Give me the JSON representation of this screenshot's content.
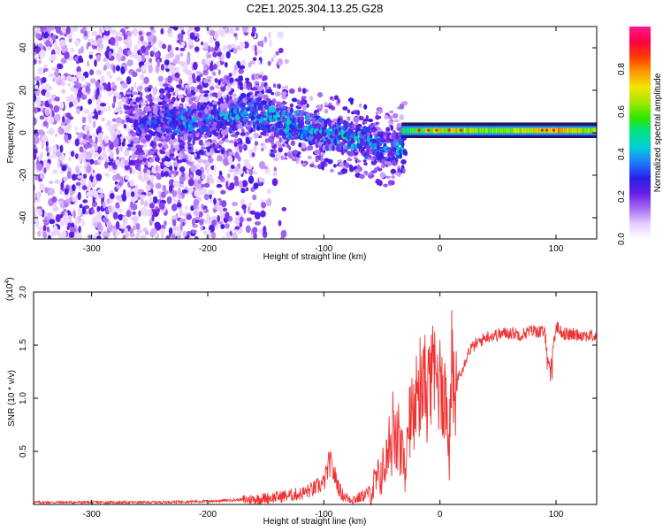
{
  "figure_title": "C2E1.2025.304.13.25.G28",
  "chart_data": [
    {
      "type": "heatmap",
      "title": "C2E1.2025.304.13.25.G28",
      "xlabel": "Height of straight line (km)",
      "ylabel": "Frequency (Hz)",
      "xlim": [
        -350,
        135
      ],
      "ylim": [
        -50,
        50
      ],
      "x_ticks": [
        -300,
        -200,
        -100,
        0,
        100
      ],
      "x_tick_labels": [
        "-300",
        "-200",
        "-100",
        "0",
        "100"
      ],
      "y_ticks": [
        -40,
        -20,
        0,
        20,
        40
      ],
      "y_tick_labels": [
        "-40",
        "-20",
        "0",
        "20",
        "40"
      ],
      "colorbar": {
        "label": "Normalized spectral amplitude",
        "range": [
          0.0,
          1.0
        ],
        "ticks": [
          0.0,
          0.2,
          0.4,
          0.6,
          0.8
        ],
        "tick_labels": [
          "0.0",
          "0.2",
          "0.4",
          "0.6",
          "0.8"
        ],
        "colors": [
          "#ffffff",
          "#e6ccff",
          "#a86cf2",
          "#6a1ee6",
          "#2a1ee6",
          "#1e78ff",
          "#00ccdd",
          "#00e08a",
          "#2ee600",
          "#a8e600",
          "#f2e600",
          "#ff9a00",
          "#ff3a00",
          "#ff0044",
          "#ff1a8c"
        ]
      },
      "ridge": {
        "description_points_x": [
          -260,
          -240,
          -220,
          -200,
          -180,
          -160,
          -140,
          -120,
          -100,
          -80,
          -60,
          -40,
          -30,
          -20,
          0,
          20,
          40,
          60,
          80,
          100,
          135
        ],
        "frequency_hz": [
          3,
          5,
          4,
          6,
          8,
          10,
          6,
          3,
          0,
          -2,
          -5,
          -8,
          -3,
          1,
          2,
          2,
          1,
          1,
          2,
          1,
          1
        ],
        "amplitude": [
          0.3,
          0.35,
          0.4,
          0.35,
          0.4,
          0.4,
          0.45,
          0.45,
          0.4,
          0.45,
          0.4,
          0.35,
          0.5,
          0.6,
          0.65,
          0.65,
          0.6,
          0.6,
          0.7,
          0.75,
          0.6
        ]
      },
      "noise_region_x": [
        -350,
        -160
      ]
    },
    {
      "type": "line",
      "title": "",
      "xlabel": "Height of straight line (km)",
      "ylabel": "SNR (10 * v/v)",
      "y_scale_label": "(x10",
      "y_scale_exponent": "4",
      "y_scale_suffix": ")",
      "xlim": [
        -350,
        135
      ],
      "ylim": [
        0,
        2.0
      ],
      "x_ticks": [
        -300,
        -200,
        -100,
        0,
        100
      ],
      "x_tick_labels": [
        "-300",
        "-200",
        "-100",
        "0",
        "100"
      ],
      "y_ticks": [
        0.5,
        1.0,
        1.5,
        2.0
      ],
      "y_tick_labels": [
        "0.5",
        "1.0",
        "1.5",
        "2.0"
      ],
      "series": [
        {
          "name": "SNR",
          "color": "#ee3333",
          "x": [
            -350,
            -300,
            -250,
            -200,
            -160,
            -140,
            -120,
            -110,
            -100,
            -95,
            -90,
            -85,
            -80,
            -75,
            -70,
            -60,
            -50,
            -45,
            -40,
            -35,
            -30,
            -25,
            -20,
            -15,
            -10,
            -5,
            0,
            5,
            8,
            10,
            12,
            15,
            20,
            25,
            30,
            40,
            50,
            60,
            70,
            80,
            90,
            95,
            98,
            100,
            105,
            110,
            120,
            135
          ],
          "y": [
            0.02,
            0.02,
            0.02,
            0.03,
            0.05,
            0.07,
            0.1,
            0.14,
            0.2,
            0.4,
            0.25,
            0.1,
            0.06,
            0.05,
            0.06,
            0.12,
            0.3,
            0.45,
            0.6,
            0.55,
            0.3,
            0.7,
            1.0,
            1.1,
            1.05,
            1.2,
            1.15,
            1.0,
            0.5,
            1.3,
            1.0,
            1.2,
            1.3,
            1.45,
            1.5,
            1.58,
            1.6,
            1.62,
            1.6,
            1.64,
            1.62,
            1.25,
            1.5,
            1.68,
            1.62,
            1.6,
            1.6,
            1.58
          ]
        }
      ]
    }
  ]
}
